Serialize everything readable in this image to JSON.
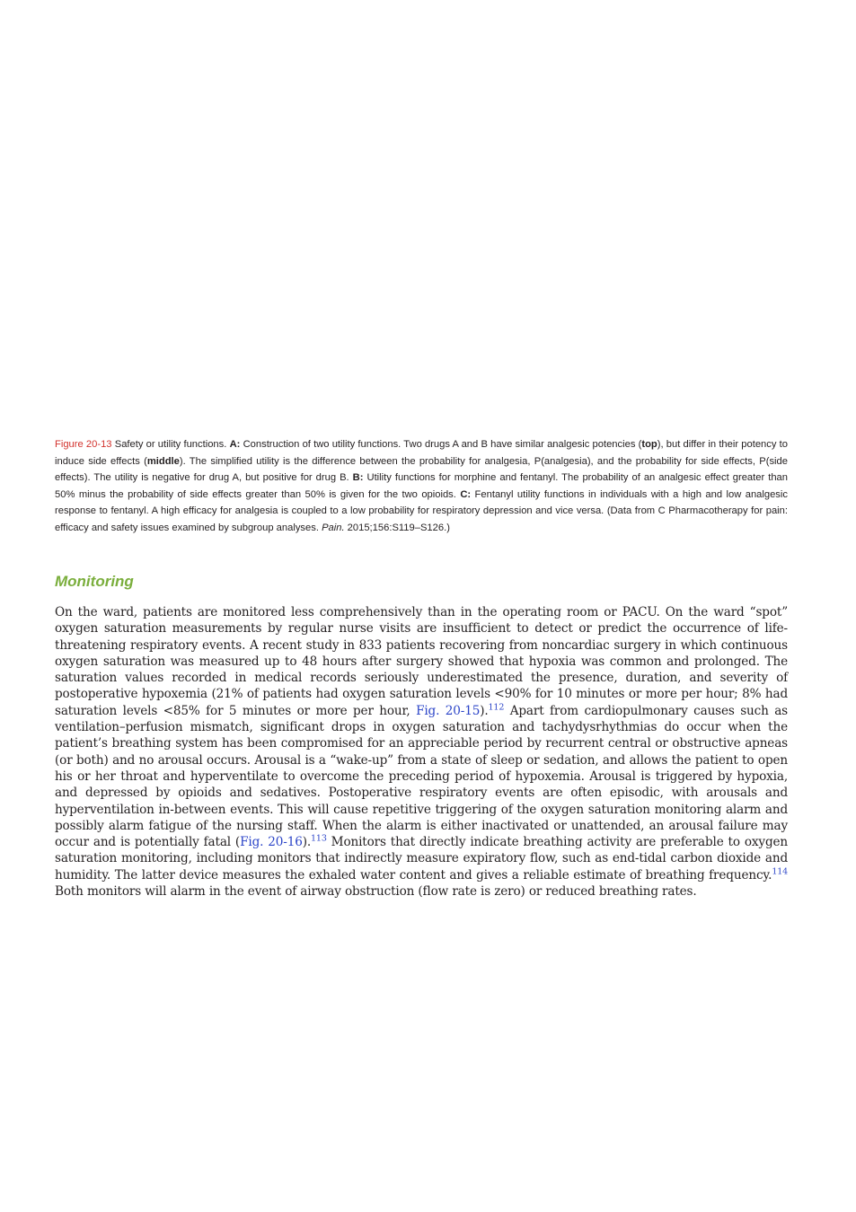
{
  "caption": [
    "Figure 20-13",
    " Safety or utility functions. ",
    "A:",
    " Construction of two utility functions. Two drugs A and B have similar analgesic potencies (",
    "top",
    "), but differ in their potency to induce side effects (",
    "middle",
    "). The simplified utility is the difference between the probability for analgesia, P(analgesia), and the probability for side effects, P(side effects). The utility is negative for drug A, but positive for drug B. ",
    "B:",
    " Utility functions for morphine and fentanyl. The probability of an analgesic effect greater than 50% minus the probability of side effects greater than 50% is given for the two opioids. ",
    "C:",
    " Fentanyl utility functions in individuals with a high and low analgesic response to fentanyl. A high efficacy for analgesia is coupled to a low probability for respiratory depression and vice versa. (Data from C Pharmacotherapy for pain: efficacy and safety issues examined by subgroup analyses. ",
    "Pain.",
    " 2015;156:S119–S126.)"
  ],
  "heading": "Monitoring",
  "body": [
    "On the ward, patients are monitored less comprehensively than in the operating room or PACU. On the ward “spot” oxygen saturation measurements by regular nurse visits are insufficient to detect or predict the occurrence of life-threatening respiratory events. A recent study in 833 patients recovering from noncardiac surgery in which continuous oxygen saturation was measured up to 48 hours after surgery showed that hypoxia was common and prolonged. The saturation values recorded in medical records seriously underestimated the presence, duration, and severity of postoperative hypoxemia (21% of patients had oxygen saturation levels <90% for 10 minutes or more per hour; 8% had saturation levels <85% for 5 minutes or more per hour, ",
    "Fig. 20-15",
    ").",
    "112",
    " Apart from cardiopulmonary causes such as ventilation–perfusion mismatch, significant drops in oxygen saturation and tachydysrhythmias do occur when the patient’s breathing system has been compromised for an appreciable period by recurrent central or obstructive apneas (or both) and no arousal occurs. Arousal is a “wake-up” from a state of sleep or sedation, and allows the patient to open his or her throat and hyperventilate to overcome the preceding period of hypoxemia. Arousal is triggered by hypoxia, and depressed by opioids and sedatives. Postoperative respiratory events are often episodic, with arousals and hyperventilation in-between events. This will cause repetitive triggering of the oxygen saturation monitoring alarm and possibly alarm fatigue of the nursing staff. When the alarm is either inactivated or unattended, an arousal failure may occur and is potentially fatal (",
    "Fig. 20-16",
    ").",
    "113",
    " Monitors that directly indicate breathing activity are preferable to oxygen saturation monitoring, including monitors that indirectly measure expiratory flow, such as end-tidal carbon dioxide and humidity. The latter device measures the exhaled water content and gives a reliable estimate of breathing frequency.",
    "114",
    " Both monitors will alarm in the event of airway obstruction (flow rate is zero) or reduced breathing rates."
  ]
}
